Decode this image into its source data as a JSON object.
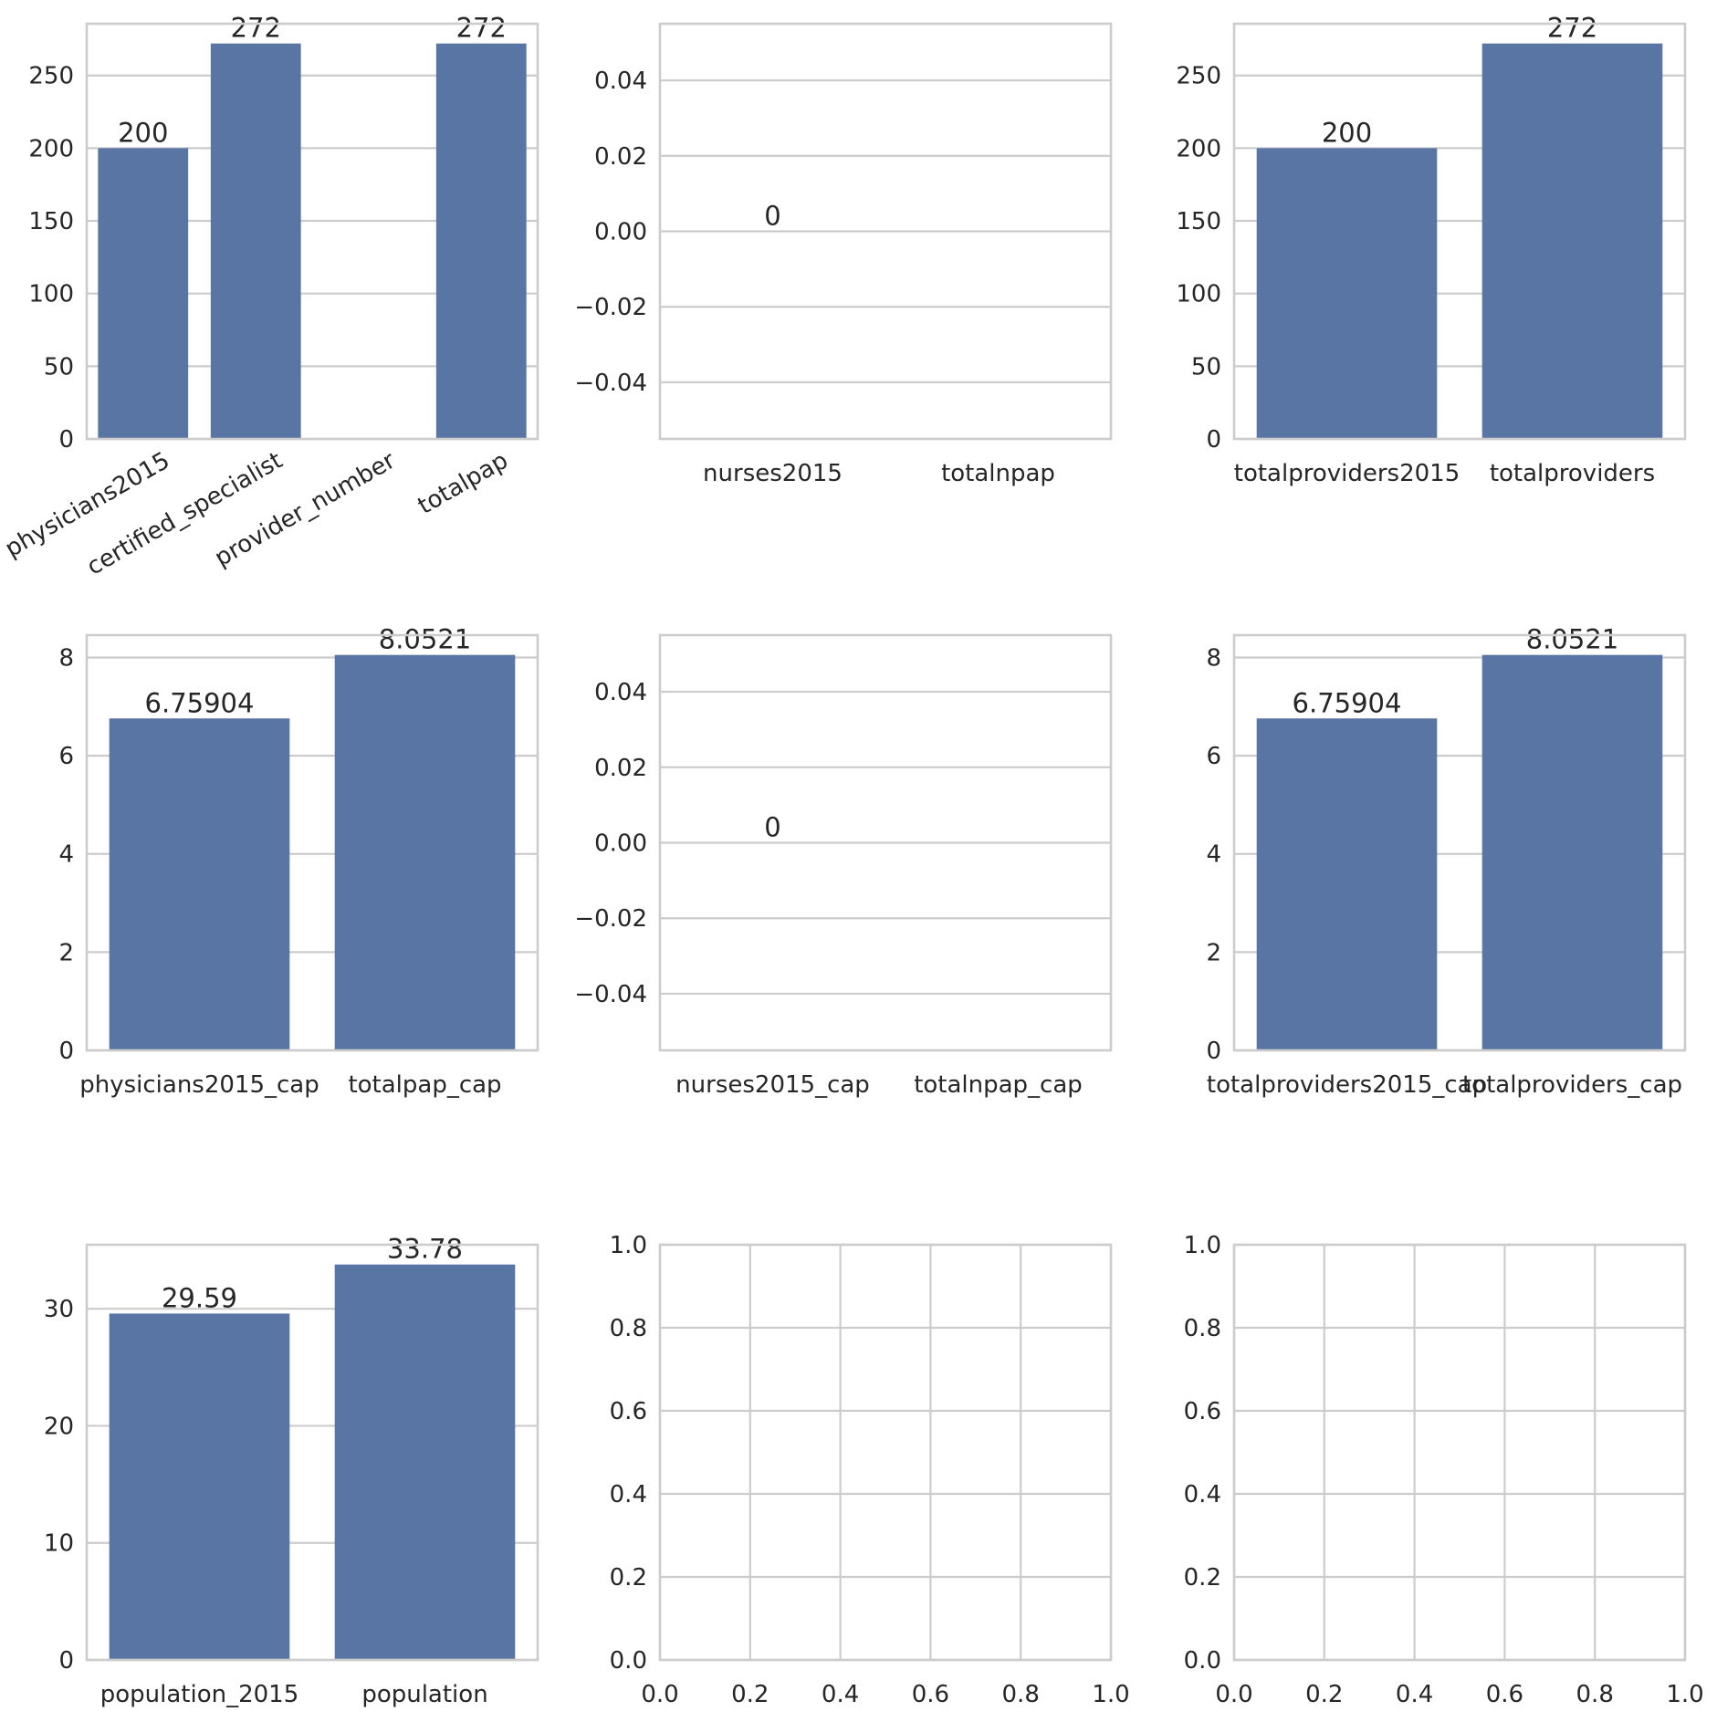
{
  "chart_data": [
    {
      "type": "bar",
      "categories": [
        "physicians2015",
        "certified_specialist",
        "provider_number",
        "totalpap"
      ],
      "values": [
        200,
        272,
        null,
        272
      ],
      "data_labels": [
        "200",
        "272",
        "",
        "272"
      ],
      "ylim": [
        0,
        285.6
      ],
      "yticks": [
        0,
        50,
        100,
        150,
        200,
        250
      ],
      "ytick_labels": [
        "0",
        "50",
        "100",
        "150",
        "200",
        "250"
      ],
      "xtick_rotation": 30,
      "xgrid": false,
      "title": "",
      "xlabel": "",
      "ylabel": ""
    },
    {
      "type": "bar",
      "categories": [
        "nurses2015",
        "totalnpap"
      ],
      "values": [
        0,
        null
      ],
      "data_labels": [
        "0",
        ""
      ],
      "ylim": [
        -0.055,
        0.055
      ],
      "yticks": [
        -0.04,
        -0.02,
        0.0,
        0.02,
        0.04
      ],
      "ytick_labels": [
        "−0.04",
        "−0.02",
        "0.00",
        "0.02",
        "0.04"
      ],
      "xgrid": false,
      "title": "",
      "xlabel": "",
      "ylabel": ""
    },
    {
      "type": "bar",
      "categories": [
        "totalproviders2015",
        "totalproviders"
      ],
      "values": [
        200,
        272
      ],
      "data_labels": [
        "200",
        "272"
      ],
      "ylim": [
        0,
        285.6
      ],
      "yticks": [
        0,
        50,
        100,
        150,
        200,
        250
      ],
      "ytick_labels": [
        "0",
        "50",
        "100",
        "150",
        "200",
        "250"
      ],
      "xgrid": false,
      "title": "",
      "xlabel": "",
      "ylabel": ""
    },
    {
      "type": "bar",
      "categories": [
        "physicians2015_cap",
        "totalpap_cap"
      ],
      "values": [
        6.75904,
        8.0521
      ],
      "data_labels": [
        "6.75904",
        "8.0521"
      ],
      "ylim": [
        0,
        8.455
      ],
      "yticks": [
        0,
        2,
        4,
        6,
        8
      ],
      "ytick_labels": [
        "0",
        "2",
        "4",
        "6",
        "8"
      ],
      "xgrid": false,
      "title": "",
      "xlabel": "",
      "ylabel": ""
    },
    {
      "type": "bar",
      "categories": [
        "nurses2015_cap",
        "totalnpap_cap"
      ],
      "values": [
        0,
        null
      ],
      "data_labels": [
        "0",
        ""
      ],
      "ylim": [
        -0.055,
        0.055
      ],
      "yticks": [
        -0.04,
        -0.02,
        0.0,
        0.02,
        0.04
      ],
      "ytick_labels": [
        "−0.04",
        "−0.02",
        "0.00",
        "0.02",
        "0.04"
      ],
      "xgrid": false,
      "title": "",
      "xlabel": "",
      "ylabel": ""
    },
    {
      "type": "bar",
      "categories": [
        "totalproviders2015_cap",
        "totalproviders_cap"
      ],
      "values": [
        6.75904,
        8.0521
      ],
      "data_labels": [
        "6.75904",
        "8.0521"
      ],
      "ylim": [
        0,
        8.455
      ],
      "yticks": [
        0,
        2,
        4,
        6,
        8
      ],
      "ytick_labels": [
        "0",
        "2",
        "4",
        "6",
        "8"
      ],
      "xgrid": false,
      "title": "",
      "xlabel": "",
      "ylabel": ""
    },
    {
      "type": "bar",
      "categories": [
        "population_2015",
        "population"
      ],
      "values": [
        29.59,
        33.78
      ],
      "data_labels": [
        "29.59",
        "33.78"
      ],
      "ylim": [
        0,
        35.47
      ],
      "yticks": [
        0,
        10,
        20,
        30
      ],
      "ytick_labels": [
        "0",
        "10",
        "20",
        "30"
      ],
      "xgrid": false,
      "title": "",
      "xlabel": "",
      "ylabel": ""
    },
    {
      "type": "empty",
      "xlim": [
        0,
        1
      ],
      "ylim": [
        0,
        1
      ],
      "xticks": [
        0.0,
        0.2,
        0.4,
        0.6,
        0.8,
        1.0
      ],
      "yticks": [
        0.0,
        0.2,
        0.4,
        0.6,
        0.8,
        1.0
      ],
      "xtick_labels": [
        "0.0",
        "0.2",
        "0.4",
        "0.6",
        "0.8",
        "1.0"
      ],
      "ytick_labels": [
        "0.0",
        "0.2",
        "0.4",
        "0.6",
        "0.8",
        "1.0"
      ],
      "xgrid": true,
      "title": "",
      "xlabel": "",
      "ylabel": ""
    },
    {
      "type": "empty",
      "xlim": [
        0,
        1
      ],
      "ylim": [
        0,
        1
      ],
      "xticks": [
        0.0,
        0.2,
        0.4,
        0.6,
        0.8,
        1.0
      ],
      "yticks": [
        0.0,
        0.2,
        0.4,
        0.6,
        0.8,
        1.0
      ],
      "xtick_labels": [
        "0.0",
        "0.2",
        "0.4",
        "0.6",
        "0.8",
        "1.0"
      ],
      "ytick_labels": [
        "0.0",
        "0.2",
        "0.4",
        "0.6",
        "0.8",
        "1.0"
      ],
      "xgrid": true,
      "title": "",
      "xlabel": "",
      "ylabel": ""
    }
  ],
  "colors": {
    "bar": "#5975a4",
    "grid": "#cccccc",
    "text": "#262626"
  }
}
